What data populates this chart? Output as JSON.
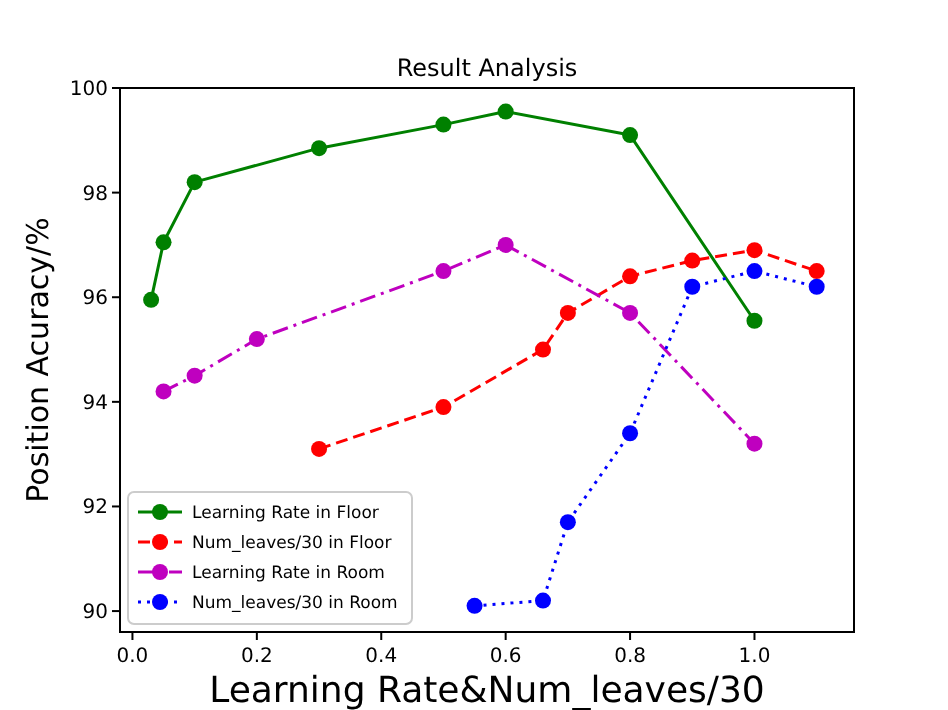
{
  "chart_data": {
    "type": "line",
    "title": "Result Analysis",
    "xlabel": "Learning Rate&Num_leaves/30",
    "ylabel": "Position Acuracy/%",
    "xlim": [
      -0.02,
      1.16
    ],
    "xticks": [
      {
        "value": 0,
        "label": "0.0"
      },
      0.2,
      0.4,
      0.6,
      0.8,
      {
        "value": 1,
        "label": "1.0"
      }
    ],
    "ylim": [
      89.6,
      100
    ],
    "yticks": [
      90,
      92,
      94,
      96,
      98,
      100
    ],
    "legend": "bottom left",
    "marker": "circle",
    "series": [
      {
        "name": "Learning Rate in Floor",
        "color": "#008000",
        "line_style": "solid",
        "x": [
          0.03,
          0.05,
          0.1,
          0.3,
          0.5,
          0.6,
          0.8,
          1.0
        ],
        "values": [
          95.95,
          97.05,
          98.2,
          98.85,
          99.3,
          99.55,
          99.1,
          95.55
        ]
      },
      {
        "name": "Num_leaves/30 in Floor",
        "color": "#ff0000",
        "line_style": "dashed",
        "x": [
          0.3,
          0.5,
          0.66,
          0.7,
          0.8,
          0.9,
          1.0,
          1.1
        ],
        "values": [
          93.1,
          93.9,
          95.0,
          95.7,
          96.4,
          96.7,
          96.9,
          96.5
        ]
      },
      {
        "name": "Learning Rate in Room",
        "color": "#bf00bf",
        "line_style": "dashdot",
        "x": [
          0.05,
          0.1,
          0.2,
          0.5,
          0.6,
          0.8,
          1.0
        ],
        "values": [
          94.2,
          94.5,
          95.2,
          96.5,
          97.0,
          95.7,
          93.2
        ]
      },
      {
        "name": "Num_leaves/30 in Room",
        "color": "#0000ff",
        "line_style": "dotted",
        "x": [
          0.55,
          0.66,
          0.7,
          0.8,
          0.9,
          1.0,
          1.1
        ],
        "values": [
          90.1,
          90.2,
          91.7,
          93.4,
          96.2,
          96.5,
          96.2
        ]
      }
    ]
  }
}
